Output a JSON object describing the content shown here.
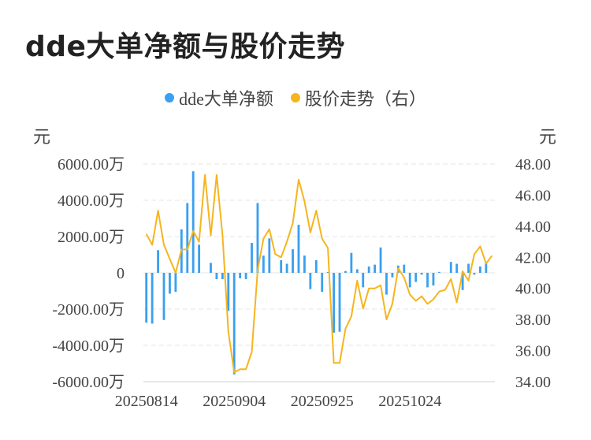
{
  "title": "dde大单净额与股价走势",
  "legend": {
    "series1": "dde大单净额",
    "series2": "股价走势（右）"
  },
  "units": {
    "left": "元",
    "right": "元"
  },
  "colors": {
    "bar": "#3aa0f0",
    "line": "#f5b51e",
    "grid": "#e6e6e6",
    "text": "#444444"
  },
  "chart_data": {
    "type": "bar",
    "y_left_ticks": [
      "6000.00万",
      "4000.00万",
      "2000.00万",
      "0",
      "-2000.00万",
      "-4000.00万",
      "-6000.00万"
    ],
    "y_left_values": [
      6000,
      4000,
      2000,
      0,
      -2000,
      -4000,
      -6000
    ],
    "ylim_left": [
      -6000,
      6000
    ],
    "y_right_ticks": [
      "48.00",
      "46.00",
      "44.00",
      "42.00",
      "40.00",
      "38.00",
      "36.00",
      "34.00"
    ],
    "y_right_values": [
      48,
      46,
      44,
      42,
      40,
      38,
      36,
      34
    ],
    "ylim_right": [
      34,
      48
    ],
    "x_tick_labels": [
      {
        "index": 0,
        "label": "20250814"
      },
      {
        "index": 15,
        "label": "20250904"
      },
      {
        "index": 30,
        "label": "20250925"
      },
      {
        "index": 45,
        "label": "20251024"
      }
    ],
    "series": [
      {
        "name": "dde大单净额",
        "type": "bar",
        "values": [
          -2750,
          -2800,
          1250,
          -2600,
          -1150,
          -1050,
          2400,
          3850,
          5600,
          1550,
          0,
          550,
          -350,
          -350,
          -2100,
          -5600,
          -300,
          -350,
          1650,
          3850,
          950,
          1900,
          0,
          700,
          500,
          1300,
          2650,
          950,
          -900,
          700,
          -1050,
          50,
          -3300,
          -3250,
          100,
          1100,
          200,
          -800,
          350,
          450,
          1400,
          -1200,
          -250,
          400,
          450,
          -800,
          -500,
          -100,
          -800,
          -700,
          50,
          0,
          600,
          500,
          -950,
          500,
          -100,
          350,
          550,
          0
        ]
      },
      {
        "name": "股价走势（右）",
        "type": "line",
        "axis": "right",
        "values": [
          43.5,
          42.8,
          45.0,
          42.8,
          41.9,
          41.0,
          42.5,
          42.5,
          43.7,
          43.0,
          47.3,
          43.4,
          47.3,
          43.4,
          37.2,
          34.6,
          34.8,
          34.8,
          35.9,
          41.2,
          43.2,
          43.8,
          42.2,
          42.0,
          43.0,
          44.2,
          47.0,
          45.6,
          43.6,
          45.0,
          43.2,
          42.6,
          35.2,
          35.2,
          37.4,
          38.2,
          40.5,
          38.7,
          40.0,
          40.0,
          40.2,
          38.0,
          39.0,
          41.3,
          40.7,
          39.6,
          39.2,
          39.5,
          39.0,
          39.3,
          39.8,
          39.9,
          40.6,
          39.1,
          41.1,
          40.5,
          42.2,
          42.7,
          41.6,
          42.1
        ]
      }
    ]
  }
}
